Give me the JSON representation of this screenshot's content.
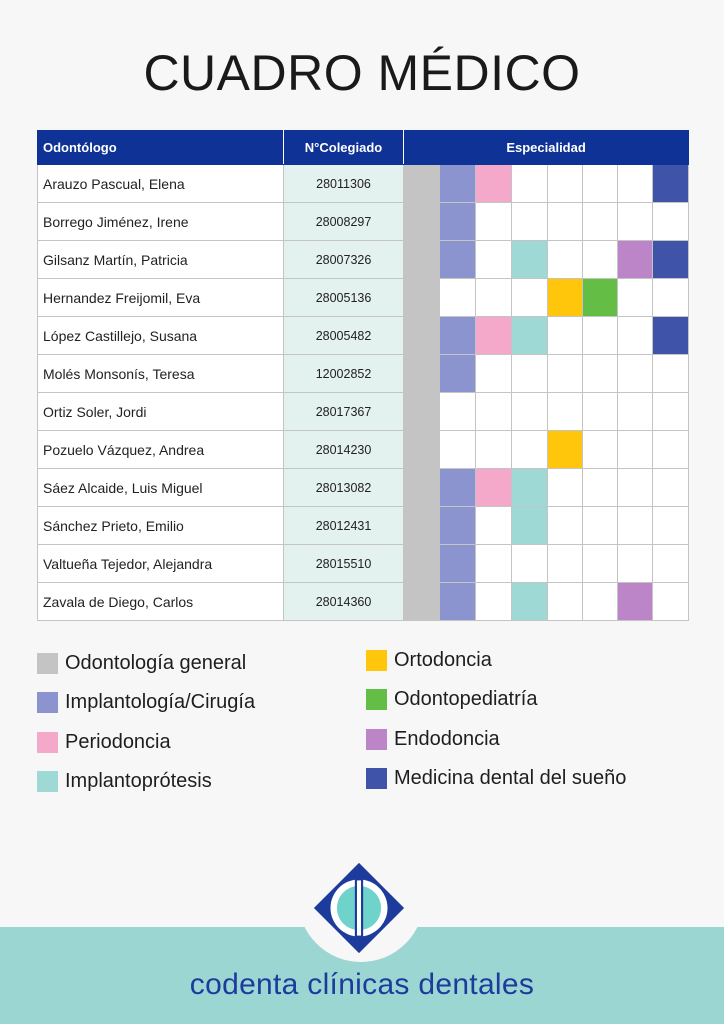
{
  "title": "CUADRO MÉDICO",
  "table": {
    "headers": {
      "name": "Odontólogo",
      "number": "N°Colegiado",
      "specialty": "Especialidad"
    },
    "rows": [
      {
        "name": "Arauzo Pascual, Elena",
        "number": "28011306",
        "specialties": [
          1,
          2,
          0,
          0,
          0,
          0,
          7
        ]
      },
      {
        "name": "Borrego Jiménez, Irene",
        "number": "28008297",
        "specialties": [
          1,
          0,
          0,
          0,
          0,
          0,
          0
        ]
      },
      {
        "name": "Gilsanz Martín, Patricia",
        "number": "28007326",
        "specialties": [
          1,
          0,
          3,
          0,
          0,
          6,
          7
        ]
      },
      {
        "name": "Hernandez Freijomil, Eva",
        "number": "28005136",
        "specialties": [
          0,
          0,
          0,
          4,
          5,
          0,
          0
        ]
      },
      {
        "name": "López Castillejo, Susana",
        "number": "28005482",
        "specialties": [
          1,
          2,
          3,
          0,
          0,
          0,
          7
        ]
      },
      {
        "name": "Molés Monsonís, Teresa",
        "number": "12002852",
        "specialties": [
          1,
          0,
          0,
          0,
          0,
          0,
          0
        ]
      },
      {
        "name": "Ortiz Soler, Jordi",
        "number": "28017367",
        "specialties": [
          0,
          0,
          0,
          0,
          0,
          0,
          0
        ]
      },
      {
        "name": "Pozuelo Vázquez, Andrea",
        "number": "28014230",
        "specialties": [
          0,
          0,
          0,
          4,
          0,
          0,
          0
        ]
      },
      {
        "name": "Sáez Alcaide, Luis Miguel",
        "number": "28013082",
        "specialties": [
          1,
          2,
          3,
          0,
          0,
          0,
          0
        ]
      },
      {
        "name": "Sánchez Prieto, Emilio",
        "number": "28012431",
        "specialties": [
          1,
          0,
          3,
          0,
          0,
          0,
          0
        ]
      },
      {
        "name": "Valtueña Tejedor, Alejandra",
        "number": "28015510",
        "specialties": [
          1,
          0,
          0,
          0,
          0,
          0,
          0
        ]
      },
      {
        "name": "Zavala de Diego, Carlos",
        "number": "28014360",
        "specialties": [
          1,
          0,
          3,
          0,
          0,
          6,
          0
        ]
      }
    ]
  },
  "specialties": [
    {
      "label": "Odontología general",
      "color": "#c4c4c4"
    },
    {
      "label": "Implantología/Cirugía",
      "color": "#8b94cf"
    },
    {
      "label": "Periodoncia",
      "color": "#f4a9cb"
    },
    {
      "label": "Implantoprótesis",
      "color": "#9fd9d5"
    },
    {
      "label": "Ortodoncia",
      "color": "#ffc60b"
    },
    {
      "label": "Odontopediatría",
      "color": "#64be46"
    },
    {
      "label": "Endodoncia",
      "color": "#bc85c8"
    },
    {
      "label": "Medicina dental del sueño",
      "color": "#3f53a8"
    }
  ],
  "colors": {
    "header_bg": "#0f3296",
    "number_bg": "#e3f1ef",
    "footer_bg": "#9cd6d3",
    "brand": "#1c3b9c"
  },
  "brand": {
    "name": "codenta clínicas dentales",
    "logo_icon": "codenta-logo-icon"
  }
}
